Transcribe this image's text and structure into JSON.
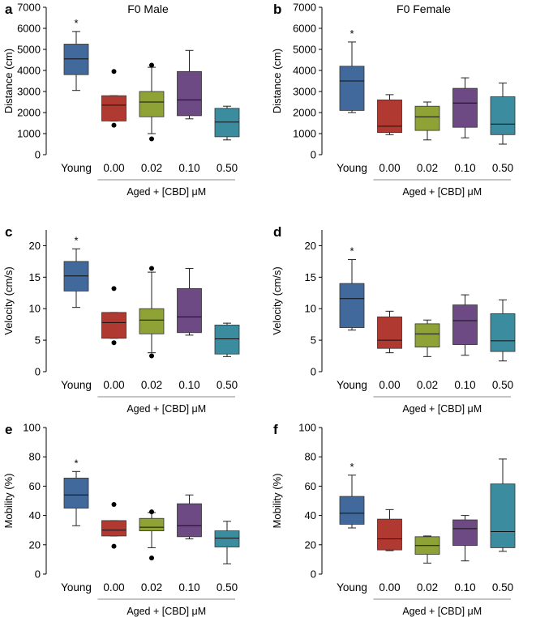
{
  "chart_data": [
    {
      "panel": "a",
      "type": "box",
      "title": "F0 Male",
      "ylabel": "Distance (cm)",
      "ylim": [
        0,
        7000
      ],
      "yticks": [
        0,
        1000,
        2000,
        3000,
        4000,
        5000,
        6000,
        7000
      ],
      "categories": [
        "Young",
        "0.00",
        "0.02",
        "0.10",
        "0.50"
      ],
      "group_label": "Aged + [CBD] μM",
      "colors": [
        "#41699b",
        "#b03a32",
        "#8ea236",
        "#6e4a84",
        "#3a8c9e"
      ],
      "boxes": [
        {
          "min": 3050,
          "q1": 3800,
          "median": 4550,
          "q3": 5250,
          "max": 5850,
          "outliers": [],
          "sig": "*"
        },
        {
          "min": 1600,
          "q1": 1600,
          "median": 2350,
          "q3": 2800,
          "max": 2800,
          "outliers": [
            3950,
            1400
          ],
          "sig": ""
        },
        {
          "min": 1000,
          "q1": 1800,
          "median": 2500,
          "q3": 3000,
          "max": 4150,
          "outliers": [
            4250,
            750
          ],
          "sig": ""
        },
        {
          "min": 1700,
          "q1": 1850,
          "median": 2600,
          "q3": 3950,
          "max": 4950,
          "outliers": [],
          "sig": ""
        },
        {
          "min": 700,
          "q1": 850,
          "median": 1550,
          "q3": 2200,
          "max": 2300,
          "outliers": [],
          "sig": ""
        }
      ]
    },
    {
      "panel": "b",
      "type": "box",
      "title": "F0 Female",
      "ylabel": "Distance (cm)",
      "ylim": [
        0,
        7000
      ],
      "yticks": [
        0,
        1000,
        2000,
        3000,
        4000,
        5000,
        6000,
        7000
      ],
      "categories": [
        "Young",
        "0.00",
        "0.02",
        "0.10",
        "0.50"
      ],
      "group_label": "Aged + [CBD] μM",
      "colors": [
        "#41699b",
        "#b03a32",
        "#8ea236",
        "#6e4a84",
        "#3a8c9e"
      ],
      "boxes": [
        {
          "min": 2000,
          "q1": 2100,
          "median": 3500,
          "q3": 4200,
          "max": 5350,
          "outliers": [],
          "sig": "*"
        },
        {
          "min": 950,
          "q1": 1050,
          "median": 1350,
          "q3": 2600,
          "max": 2850,
          "outliers": [],
          "sig": ""
        },
        {
          "min": 700,
          "q1": 1150,
          "median": 1800,
          "q3": 2300,
          "max": 2500,
          "outliers": [],
          "sig": ""
        },
        {
          "min": 800,
          "q1": 1300,
          "median": 2450,
          "q3": 3150,
          "max": 3650,
          "outliers": [],
          "sig": ""
        },
        {
          "min": 500,
          "q1": 950,
          "median": 1450,
          "q3": 2750,
          "max": 3400,
          "outliers": [],
          "sig": ""
        }
      ]
    },
    {
      "panel": "c",
      "type": "box",
      "title": "",
      "ylabel": "Velocity (cm/s)",
      "ylim": [
        0,
        22.5
      ],
      "yticks": [
        0,
        5,
        10,
        15,
        20
      ],
      "categories": [
        "Young",
        "0.00",
        "0.02",
        "0.10",
        "0.50"
      ],
      "group_label": "Aged + [CBD] μM",
      "colors": [
        "#41699b",
        "#b03a32",
        "#8ea236",
        "#6e4a84",
        "#3a8c9e"
      ],
      "boxes": [
        {
          "min": 10.2,
          "q1": 12.8,
          "median": 15.2,
          "q3": 17.5,
          "max": 19.5,
          "outliers": [],
          "sig": "*"
        },
        {
          "min": 5.3,
          "q1": 5.3,
          "median": 7.8,
          "q3": 9.4,
          "max": 9.4,
          "outliers": [
            13.2,
            4.6
          ],
          "sig": ""
        },
        {
          "min": 3.0,
          "q1": 6.0,
          "median": 8.2,
          "q3": 10.0,
          "max": 15.8,
          "outliers": [
            16.4,
            2.5
          ],
          "sig": ""
        },
        {
          "min": 5.8,
          "q1": 6.2,
          "median": 8.7,
          "q3": 13.2,
          "max": 16.4,
          "outliers": [],
          "sig": ""
        },
        {
          "min": 2.4,
          "q1": 2.8,
          "median": 5.2,
          "q3": 7.4,
          "max": 7.7,
          "outliers": [],
          "sig": ""
        }
      ]
    },
    {
      "panel": "d",
      "type": "box",
      "title": "",
      "ylabel": "Velocity (cm/s)",
      "ylim": [
        0,
        22.5
      ],
      "yticks": [
        0,
        5,
        10,
        15,
        20
      ],
      "categories": [
        "Young",
        "0.00",
        "0.02",
        "0.10",
        "0.50"
      ],
      "group_label": "Aged + [CBD] μM",
      "colors": [
        "#41699b",
        "#b03a32",
        "#8ea236",
        "#6e4a84",
        "#3a8c9e"
      ],
      "boxes": [
        {
          "min": 6.6,
          "q1": 7.0,
          "median": 11.6,
          "q3": 14.0,
          "max": 17.8,
          "outliers": [],
          "sig": "*"
        },
        {
          "min": 3.0,
          "q1": 3.7,
          "median": 5.0,
          "q3": 8.7,
          "max": 9.6,
          "outliers": [],
          "sig": ""
        },
        {
          "min": 2.4,
          "q1": 3.9,
          "median": 6.0,
          "q3": 7.6,
          "max": 8.2,
          "outliers": [],
          "sig": ""
        },
        {
          "min": 2.6,
          "q1": 4.3,
          "median": 8.1,
          "q3": 10.6,
          "max": 12.2,
          "outliers": [],
          "sig": ""
        },
        {
          "min": 1.7,
          "q1": 3.2,
          "median": 4.9,
          "q3": 9.2,
          "max": 11.4,
          "outliers": [],
          "sig": ""
        }
      ]
    },
    {
      "panel": "e",
      "type": "box",
      "title": "",
      "ylabel": "Mobility (%)",
      "ylim": [
        0,
        100
      ],
      "yticks": [
        0,
        20,
        40,
        60,
        80,
        100
      ],
      "categories": [
        "Young",
        "0.00",
        "0.02",
        "0.10",
        "0.50"
      ],
      "group_label": "Aged + [CBD] μM",
      "colors": [
        "#41699b",
        "#b03a32",
        "#8ea236",
        "#6e4a84",
        "#3a8c9e"
      ],
      "boxes": [
        {
          "min": 33,
          "q1": 45,
          "median": 54,
          "q3": 65.5,
          "max": 70,
          "outliers": [],
          "sig": "*"
        },
        {
          "min": 26,
          "q1": 26,
          "median": 30,
          "q3": 36.5,
          "max": 36.5,
          "outliers": [
            47.5,
            19
          ],
          "sig": ""
        },
        {
          "min": 18,
          "q1": 29.5,
          "median": 32,
          "q3": 38,
          "max": 42,
          "outliers": [
            42.5,
            11
          ],
          "sig": ""
        },
        {
          "min": 24,
          "q1": 25.5,
          "median": 33,
          "q3": 48,
          "max": 54,
          "outliers": [],
          "sig": ""
        },
        {
          "min": 7,
          "q1": 18.5,
          "median": 24.5,
          "q3": 29.5,
          "max": 36,
          "outliers": [],
          "sig": ""
        }
      ]
    },
    {
      "panel": "f",
      "type": "box",
      "title": "",
      "ylabel": "Mobility (%)",
      "ylim": [
        0,
        100
      ],
      "yticks": [
        0,
        20,
        40,
        60,
        80,
        100
      ],
      "categories": [
        "Young",
        "0.00",
        "0.02",
        "0.10",
        "0.50"
      ],
      "group_label": "Aged + [CBD] μM",
      "colors": [
        "#41699b",
        "#b03a32",
        "#8ea236",
        "#6e4a84",
        "#3a8c9e"
      ],
      "boxes": [
        {
          "min": 31.5,
          "q1": 34,
          "median": 41.5,
          "q3": 53,
          "max": 67.5,
          "outliers": [],
          "sig": "*"
        },
        {
          "min": 16,
          "q1": 16.5,
          "median": 24,
          "q3": 37.5,
          "max": 44,
          "outliers": [],
          "sig": ""
        },
        {
          "min": 7.5,
          "q1": 13.5,
          "median": 19.5,
          "q3": 25.5,
          "max": 26,
          "outliers": [],
          "sig": ""
        },
        {
          "min": 9,
          "q1": 19.5,
          "median": 31,
          "q3": 37,
          "max": 40,
          "outliers": [],
          "sig": ""
        },
        {
          "min": 15.5,
          "q1": 18,
          "median": 29,
          "q3": 61.5,
          "max": 78.5,
          "outliers": [],
          "sig": ""
        }
      ]
    }
  ]
}
